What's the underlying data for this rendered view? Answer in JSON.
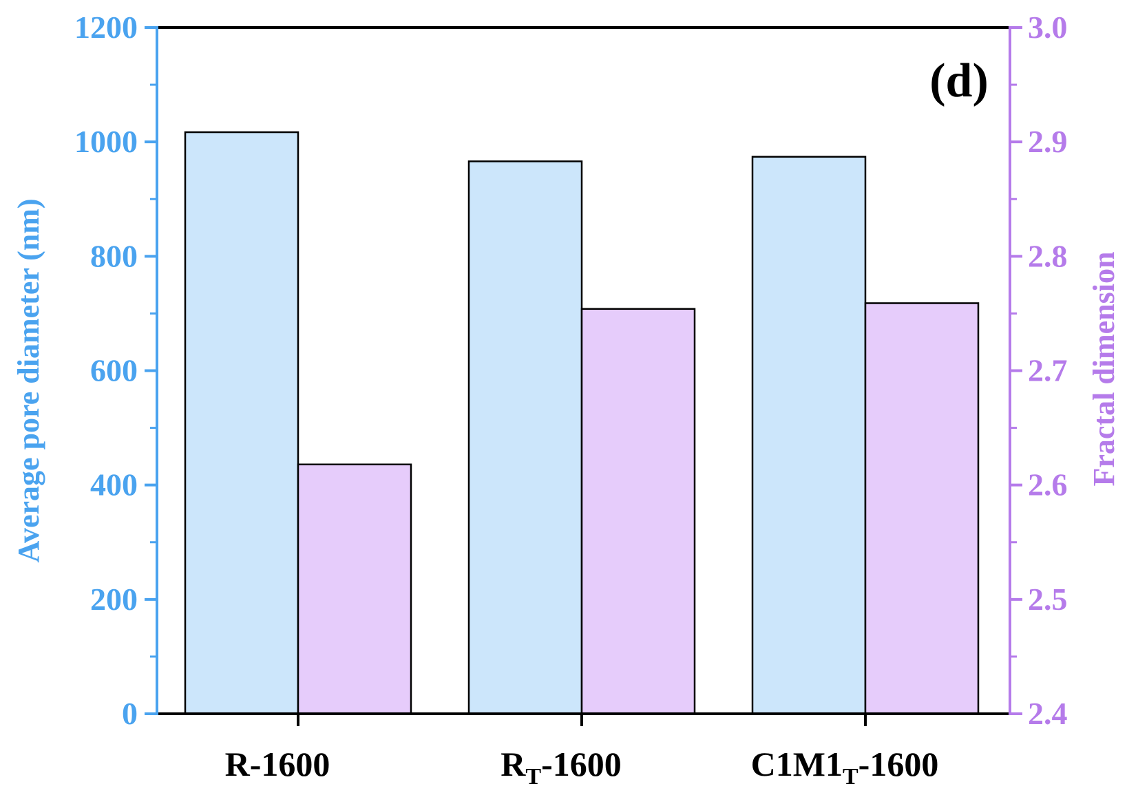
{
  "chart_data": {
    "type": "bar",
    "panel_label": "(d)",
    "categories": [
      "R-1600",
      "RT-1600",
      "C1M1T-1600"
    ],
    "category_labels": [
      {
        "main": "R-1600",
        "sub": "",
        "tail": ""
      },
      {
        "main": "R",
        "sub": "T",
        "tail": "-1600"
      },
      {
        "main": "C1M1",
        "sub": "T",
        "tail": "-1600"
      }
    ],
    "series": [
      {
        "name": "Average pore diameter (nm)",
        "axis": "left",
        "values": [
          1017,
          966,
          974
        ]
      },
      {
        "name": "Fractal dimension",
        "axis": "right",
        "values": [
          2.618,
          2.754,
          2.759
        ]
      }
    ],
    "ylabel_left": "Average pore diameter (nm)",
    "ylabel_right": "Fractal dimension",
    "ylim_left": [
      0,
      1200
    ],
    "ylim_right": [
      2.4,
      3.0
    ],
    "yticks_left": [
      "0",
      "200",
      "400",
      "600",
      "800",
      "1000",
      "1200"
    ],
    "yticks_right": [
      "2.4",
      "2.5",
      "2.6",
      "2.7",
      "2.8",
      "2.9",
      "3.0"
    ],
    "grid": false,
    "colors": {
      "left_axis": "#4aa3ef",
      "right_axis": "#b57bea",
      "bar_left": "#cce6fb",
      "bar_right": "#e6ccfb",
      "frame": "#000000"
    }
  }
}
